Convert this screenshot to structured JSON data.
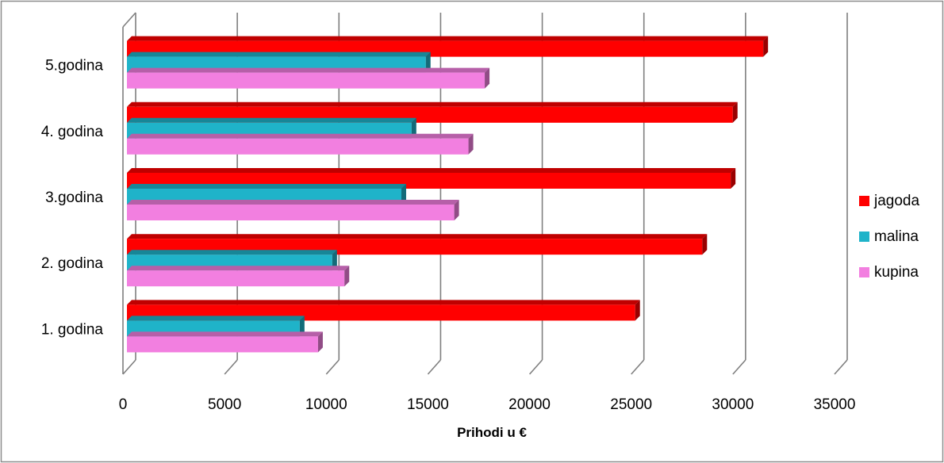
{
  "chart_data": {
    "type": "bar",
    "orientation": "horizontal",
    "style": "3d-clustered",
    "categories": [
      "1. godina",
      "2. godina",
      "3.godina",
      "4. godina",
      "5.godina"
    ],
    "series": [
      {
        "name": "jagoda",
        "color": "#ff0000",
        "values": [
          25000,
          28300,
          29700,
          29800,
          31300
        ]
      },
      {
        "name": "malina",
        "color": "#1fb3c9",
        "values": [
          8500,
          10100,
          13500,
          14000,
          14700
        ]
      },
      {
        "name": "kupina",
        "color": "#f27fe0",
        "values": [
          9400,
          10700,
          16100,
          16800,
          17600
        ]
      }
    ],
    "xlabel": "Prihodi u €",
    "ylabel": "",
    "xlim": [
      0,
      35000
    ],
    "xticks": [
      0,
      5000,
      10000,
      15000,
      20000,
      25000,
      30000,
      35000
    ],
    "xtick_labels": [
      "0",
      "5000",
      "10000",
      "15000",
      "20000",
      "25000",
      "30000",
      "35000"
    ],
    "grid": true,
    "legend": "right"
  }
}
